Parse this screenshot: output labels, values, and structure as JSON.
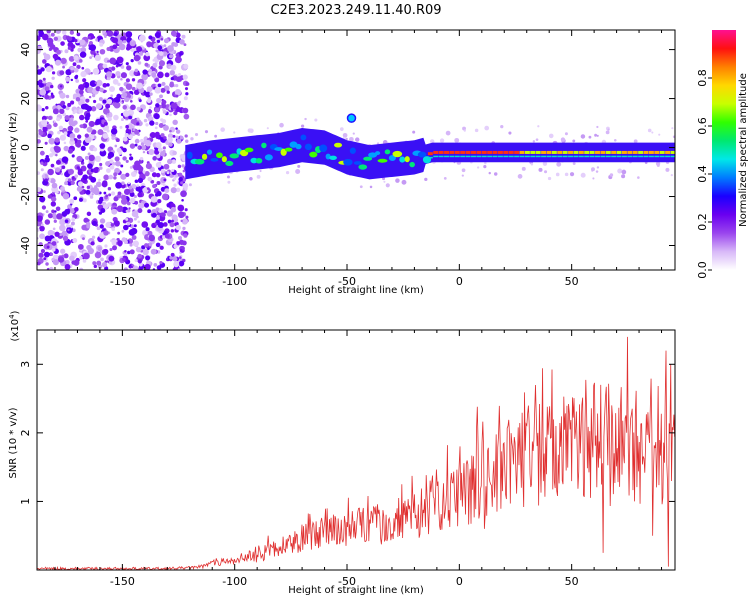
{
  "title": "C2E3.2023.249.11.40.R09",
  "chart_data": [
    {
      "type": "heatmap",
      "xlabel": "Height of straight line (km)",
      "ylabel": "Frequency (Hz)",
      "xlim": [
        -188,
        96
      ],
      "ylim": [
        -50,
        48
      ],
      "xticks": [
        -150,
        -100,
        -50,
        0,
        50
      ],
      "yticks": [
        -40,
        -20,
        0,
        20,
        40
      ],
      "xtick_labels": [
        "-150",
        "-100",
        "-50",
        "0",
        "50"
      ],
      "ytick_labels": [
        "-40",
        "-20",
        "0",
        "20",
        "40"
      ],
      "noise_region_x": [
        -188,
        -121
      ],
      "signal_ridge": {
        "x": [
          -122,
          -110,
          -100,
          -90,
          -80,
          -70,
          -60,
          -50,
          -40,
          -30,
          -20,
          -12,
          0,
          10,
          20,
          30,
          40,
          50,
          60,
          70,
          80,
          90,
          96
        ],
        "y": [
          -6,
          -4,
          -3,
          -2,
          -1,
          1,
          0,
          -4,
          -6,
          -5,
          -4,
          -2,
          -2,
          -2,
          -2,
          -2,
          -2,
          -2,
          -2,
          -2,
          -2,
          -2,
          -2
        ]
      },
      "spot": {
        "x": -48,
        "y": 12
      },
      "colorbar": {
        "label": "Normalized spectral amplitude",
        "range": [
          0,
          1
        ],
        "ticks": [
          0.0,
          0.2,
          0.4,
          0.6,
          0.8
        ],
        "tick_labels": [
          "0.0",
          "0.2",
          "0.4",
          "0.6",
          "0.8"
        ],
        "colors": [
          "#ffffff",
          "#d8b8f8",
          "#9a45ee",
          "#6a00f0",
          "#1a00ff",
          "#007bff",
          "#00e8e8",
          "#00e870",
          "#30ff00",
          "#c8ff00",
          "#ffd800",
          "#ff8000",
          "#ff1010",
          "#ff1090"
        ]
      },
      "grid": false
    },
    {
      "type": "line",
      "xlabel": "Height of straight line (km)",
      "ylabel": "SNR (10 * v/v)",
      "exponent_label": "(x10",
      "exponent_value": "4",
      "exponent_close": ")",
      "xlim": [
        -188,
        96
      ],
      "ylim": [
        0,
        3.5
      ],
      "xticks": [
        -150,
        -100,
        -50,
        0,
        50
      ],
      "yticks": [
        1,
        2,
        3
      ],
      "xtick_labels": [
        "-150",
        "-100",
        "-50",
        "0",
        "50"
      ],
      "ytick_labels": [
        "1",
        "2",
        "3"
      ],
      "series": [
        {
          "color": "#e03030",
          "envelope_x": [
            -188,
            -130,
            -115,
            -110,
            -100,
            -90,
            -82,
            -75,
            -65,
            -50,
            -40,
            -30,
            -20,
            -10,
            0,
            10,
            20,
            30,
            40,
            50,
            60,
            70,
            80,
            90,
            96
          ],
          "envelope_y": [
            0.02,
            0.02,
            0.04,
            0.1,
            0.12,
            0.2,
            0.3,
            0.4,
            0.5,
            0.6,
            0.65,
            0.7,
            0.8,
            0.95,
            1.1,
            1.3,
            1.5,
            1.62,
            1.72,
            1.75,
            1.72,
            1.68,
            1.62,
            1.65,
            1.7
          ],
          "peaks_x": [
            -85,
            -60,
            -45,
            -27,
            8,
            43,
            63,
            75,
            84,
            92,
            94
          ],
          "peaks_y": [
            0.5,
            0.7,
            0.9,
            1.05,
            2.38,
            2.1,
            2.7,
            3.4,
            2.3,
            3.2,
            3.0
          ],
          "dips_x": [
            11,
            64,
            86,
            93
          ],
          "dips_y": [
            0.6,
            0.25,
            0.5,
            0.05
          ]
        }
      ],
      "grid": false
    }
  ]
}
